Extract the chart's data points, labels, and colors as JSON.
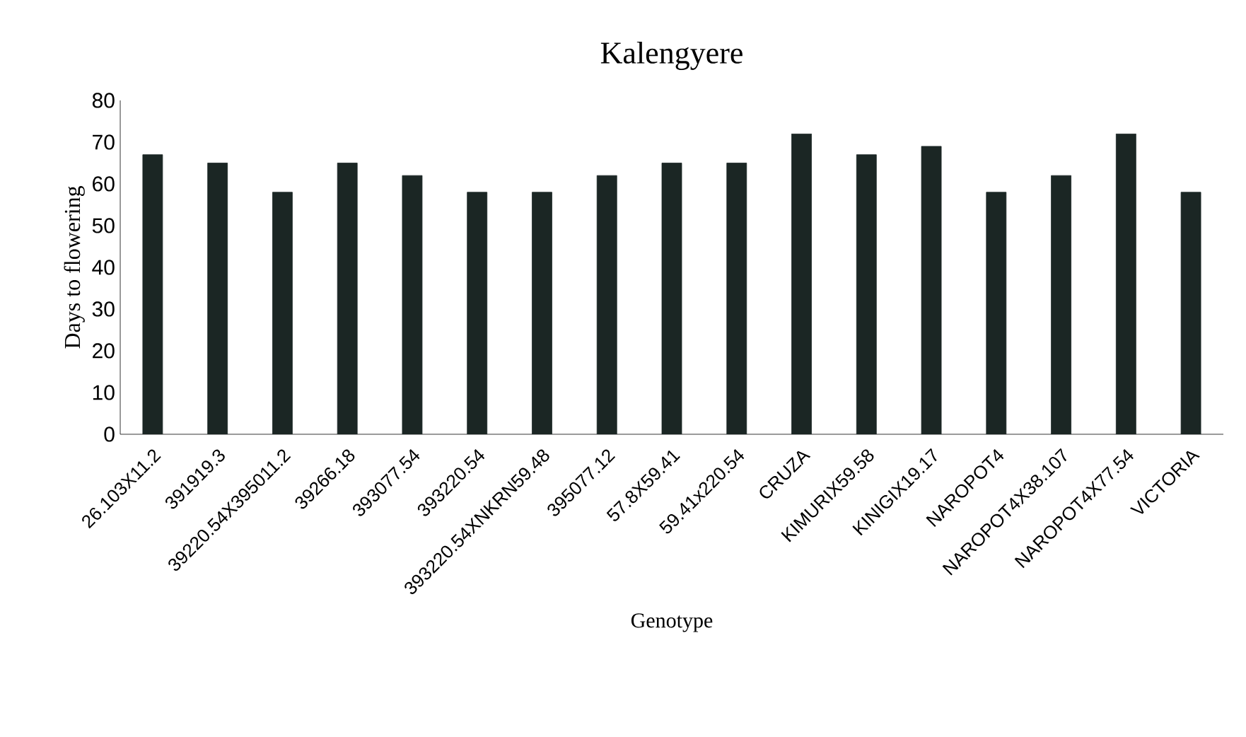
{
  "chart_data": {
    "type": "bar",
    "title": "Kalengyere",
    "xlabel": "Genotype",
    "ylabel": "Days to flowering",
    "categories": [
      "26.103X11.2",
      "391919.3",
      "39220.54X395011.2",
      "39266.18",
      "393077.54",
      "393220.54",
      "393220.54XNKRN59.48",
      "395077.12",
      "57.8X59.41",
      "59.41x220.54",
      "CRUZA",
      "KIMURIX59.58",
      "KINIGIX19.17",
      "NAROPOT4",
      "NAROPOT4X38.107",
      "NAROPOT4X77.54",
      "VICTORIA"
    ],
    "values": [
      67,
      65,
      58,
      65,
      62,
      58,
      58,
      62,
      65,
      65,
      72,
      67,
      69,
      58,
      62,
      72,
      58
    ],
    "color": "#1b2624",
    "ylim": [
      0,
      80
    ],
    "yticks": [
      0,
      10,
      20,
      30,
      40,
      50,
      60,
      70,
      80
    ],
    "grid": false
  }
}
